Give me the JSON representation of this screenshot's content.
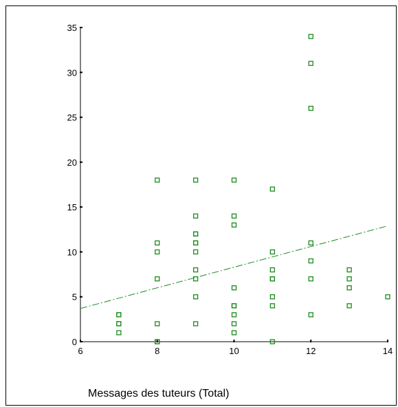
{
  "chart_data": {
    "type": "scatter",
    "xlabel": "Messages des tuteurs (Total)",
    "ylabel": "",
    "title": "",
    "xlim": [
      6,
      14
    ],
    "ylim": [
      0,
      35
    ],
    "xticks": [
      "6",
      "8",
      "10",
      "12",
      "14"
    ],
    "yticks": [
      "0",
      "5",
      "10",
      "15",
      "20",
      "25",
      "30",
      "35"
    ],
    "grid": false,
    "series": [
      {
        "marker": "open-square",
        "color": "#1a8a1a",
        "points": [
          [
            7,
            3
          ],
          [
            7,
            3
          ],
          [
            7,
            2
          ],
          [
            7,
            2
          ],
          [
            7,
            1
          ],
          [
            8,
            18
          ],
          [
            8,
            11
          ],
          [
            8,
            10
          ],
          [
            8,
            7
          ],
          [
            8,
            2
          ],
          [
            8,
            0
          ],
          [
            8,
            0
          ],
          [
            9,
            18
          ],
          [
            9,
            14
          ],
          [
            9,
            12
          ],
          [
            9,
            12
          ],
          [
            9,
            11
          ],
          [
            9,
            11
          ],
          [
            9,
            10
          ],
          [
            9,
            8
          ],
          [
            9,
            7
          ],
          [
            9,
            5
          ],
          [
            9,
            2
          ],
          [
            10,
            18
          ],
          [
            10,
            14
          ],
          [
            10,
            13
          ],
          [
            10,
            6
          ],
          [
            10,
            4
          ],
          [
            10,
            4
          ],
          [
            10,
            3
          ],
          [
            10,
            2
          ],
          [
            10,
            1
          ],
          [
            11,
            17
          ],
          [
            11,
            10
          ],
          [
            11,
            8
          ],
          [
            11,
            7
          ],
          [
            11,
            7
          ],
          [
            11,
            5
          ],
          [
            11,
            4
          ],
          [
            11,
            0
          ],
          [
            12,
            34
          ],
          [
            12,
            31
          ],
          [
            12,
            26
          ],
          [
            12,
            11
          ],
          [
            12,
            9
          ],
          [
            12,
            7
          ],
          [
            12,
            3
          ],
          [
            13,
            8
          ],
          [
            13,
            7
          ],
          [
            13,
            6
          ],
          [
            13,
            4
          ],
          [
            14,
            5
          ]
        ]
      }
    ],
    "fit_line": {
      "style": "dash-dot",
      "color": "#1a8a1a",
      "start": [
        6,
        3.7
      ],
      "end": [
        14,
        12.9
      ]
    }
  }
}
